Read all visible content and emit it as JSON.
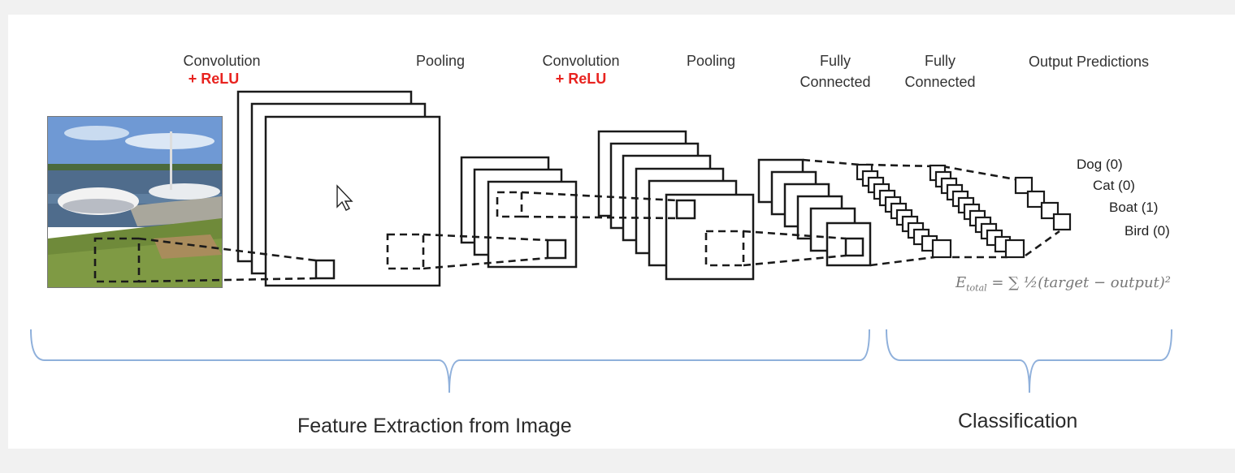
{
  "labels": {
    "conv1": "Convolution",
    "conv1_relu": "+ ReLU",
    "pool1": "Pooling",
    "conv2": "Convolution",
    "conv2_relu": "+ ReLU",
    "pool2": "Pooling",
    "fc1_line1": "Fully",
    "fc1_line2": "Connected",
    "fc2_line1": "Fully",
    "fc2_line2": "Connected",
    "output": "Output Predictions"
  },
  "classes": [
    {
      "text": "Dog (0)"
    },
    {
      "text": "Cat (0)"
    },
    {
      "text": "Boat (1)"
    },
    {
      "text": "Bird (0)"
    }
  ],
  "formula": {
    "e": "E",
    "sub": "total",
    "rest": " = ∑ ½(target − output)²"
  },
  "sections": {
    "feature_extraction": "Feature Extraction from Image",
    "classification": "Classification"
  },
  "colors": {
    "relu": "#e8231f",
    "brace": "#8fb0db",
    "line": "#1a1a1a"
  }
}
